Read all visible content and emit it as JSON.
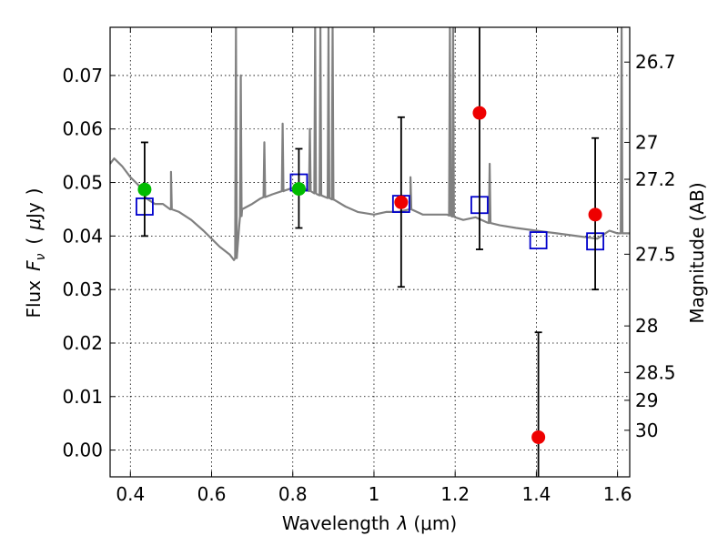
{
  "chart_data": {
    "type": "scatter",
    "xlabel": "Wavelength λ (μm)",
    "xlabel_parts": [
      "Wavelength",
      "λ",
      "(μm)"
    ],
    "ylabel": "Flux Fν ( μJy )",
    "ylabel_parts": [
      "Flux",
      "F",
      "ν",
      "(",
      "μ",
      "Jy",
      ")"
    ],
    "y2label": "Magnitude (AB)",
    "xlim": [
      0.35,
      1.63
    ],
    "ylim": [
      -0.005,
      0.079
    ],
    "grid": true,
    "x_ticks": [
      {
        "value": 0.4,
        "label": "0.4"
      },
      {
        "value": 0.6,
        "label": "0.6"
      },
      {
        "value": 0.8,
        "label": "0.8"
      },
      {
        "value": 1.0,
        "label": "1"
      },
      {
        "value": 1.2,
        "label": "1.2"
      },
      {
        "value": 1.4,
        "label": "1.4"
      },
      {
        "value": 1.6,
        "label": "1.6"
      }
    ],
    "y_ticks": [
      {
        "value": 0.0,
        "label": "0.00"
      },
      {
        "value": 0.01,
        "label": "0.01"
      },
      {
        "value": 0.02,
        "label": "0.02"
      },
      {
        "value": 0.03,
        "label": "0.03"
      },
      {
        "value": 0.04,
        "label": "0.04"
      },
      {
        "value": 0.05,
        "label": "0.05"
      },
      {
        "value": 0.06,
        "label": "0.06"
      },
      {
        "value": 0.07,
        "label": "0.07"
      }
    ],
    "mag_ticks": [
      {
        "flux": 0.0725,
        "label": "26.7"
      },
      {
        "flux": 0.0575,
        "label": "27"
      },
      {
        "flux": 0.0506,
        "label": "27.2"
      },
      {
        "flux": 0.0366,
        "label": "27.5"
      },
      {
        "flux": 0.0232,
        "label": "28"
      },
      {
        "flux": 0.0145,
        "label": "28.5"
      },
      {
        "flux": 0.0093,
        "label": "29"
      },
      {
        "flux": 0.0037,
        "label": "30"
      }
    ],
    "series": [
      {
        "kind": "model_spectrum",
        "color": "#808080",
        "continuum": [
          [
            0.35,
            0.0535
          ],
          [
            0.36,
            0.0545
          ],
          [
            0.38,
            0.053
          ],
          [
            0.4,
            0.051
          ],
          [
            0.42,
            0.0495
          ],
          [
            0.44,
            0.047
          ],
          [
            0.46,
            0.046
          ],
          [
            0.48,
            0.046
          ],
          [
            0.5,
            0.045
          ],
          [
            0.52,
            0.0445
          ],
          [
            0.55,
            0.043
          ],
          [
            0.58,
            0.041
          ],
          [
            0.6,
            0.0395
          ],
          [
            0.62,
            0.038
          ],
          [
            0.645,
            0.0365
          ],
          [
            0.655,
            0.0355
          ],
          [
            0.662,
            0.036
          ],
          [
            0.668,
            0.042
          ],
          [
            0.675,
            0.045
          ],
          [
            0.7,
            0.046
          ],
          [
            0.72,
            0.047
          ],
          [
            0.75,
            0.0478
          ],
          [
            0.78,
            0.0485
          ],
          [
            0.8,
            0.049
          ],
          [
            0.83,
            0.0488
          ],
          [
            0.86,
            0.0478
          ],
          [
            0.9,
            0.0468
          ],
          [
            0.93,
            0.0455
          ],
          [
            0.96,
            0.0445
          ],
          [
            1.0,
            0.044
          ],
          [
            1.03,
            0.0445
          ],
          [
            1.06,
            0.0445
          ],
          [
            1.09,
            0.045
          ],
          [
            1.12,
            0.044
          ],
          [
            1.15,
            0.044
          ],
          [
            1.18,
            0.044
          ],
          [
            1.2,
            0.0435
          ],
          [
            1.22,
            0.043
          ],
          [
            1.25,
            0.0435
          ],
          [
            1.28,
            0.0425
          ],
          [
            1.31,
            0.042
          ],
          [
            1.35,
            0.0415
          ],
          [
            1.4,
            0.041
          ],
          [
            1.45,
            0.0405
          ],
          [
            1.5,
            0.04
          ],
          [
            1.55,
            0.0395
          ],
          [
            1.58,
            0.041
          ],
          [
            1.6,
            0.0405
          ],
          [
            1.63,
            0.0405
          ]
        ],
        "emission_lines": [
          {
            "x": 0.5,
            "peak": 0.052
          },
          {
            "x": 0.66,
            "peak": 0.079
          },
          {
            "x": 0.672,
            "peak": 0.07
          },
          {
            "x": 0.73,
            "peak": 0.0575
          },
          {
            "x": 0.775,
            "peak": 0.061
          },
          {
            "x": 0.842,
            "peak": 0.06
          },
          {
            "x": 0.855,
            "peak": 0.079
          },
          {
            "x": 0.868,
            "peak": 0.079
          },
          {
            "x": 0.888,
            "peak": 0.079
          },
          {
            "x": 0.898,
            "peak": 0.079
          },
          {
            "x": 1.09,
            "peak": 0.051
          },
          {
            "x": 1.187,
            "peak": 0.079
          },
          {
            "x": 1.195,
            "peak": 0.079
          },
          {
            "x": 1.285,
            "peak": 0.0535
          },
          {
            "x": 1.61,
            "peak": 0.079
          }
        ]
      },
      {
        "kind": "model_photometry",
        "marker": "open_square",
        "color": "#0000cc",
        "points": [
          {
            "x": 0.435,
            "y": 0.0455
          },
          {
            "x": 0.815,
            "y": 0.05
          },
          {
            "x": 1.067,
            "y": 0.046
          },
          {
            "x": 1.26,
            "y": 0.0458
          },
          {
            "x": 1.405,
            "y": 0.0392
          },
          {
            "x": 1.545,
            "y": 0.039
          }
        ]
      },
      {
        "kind": "error_bars",
        "color": "#000000",
        "bars": [
          {
            "x": 0.435,
            "low": 0.04,
            "high": 0.0575
          },
          {
            "x": 0.815,
            "low": 0.0415,
            "high": 0.0563
          },
          {
            "x": 1.067,
            "low": 0.0305,
            "high": 0.0622
          },
          {
            "x": 1.26,
            "low": 0.0375,
            "high": 0.079
          },
          {
            "x": 1.405,
            "low": -0.005,
            "high": 0.022
          },
          {
            "x": 1.545,
            "low": 0.03,
            "high": 0.0583
          }
        ]
      },
      {
        "kind": "observed",
        "marker": "filled_circle",
        "color": "#00bb00",
        "points": [
          {
            "x": 0.435,
            "y": 0.0487
          },
          {
            "x": 0.815,
            "y": 0.0488
          }
        ]
      },
      {
        "kind": "observed",
        "marker": "filled_circle",
        "color": "#ee0000",
        "points": [
          {
            "x": 1.067,
            "y": 0.0463
          },
          {
            "x": 1.26,
            "y": 0.063
          },
          {
            "x": 1.405,
            "y": 0.0024
          },
          {
            "x": 1.545,
            "y": 0.044
          }
        ]
      }
    ]
  }
}
